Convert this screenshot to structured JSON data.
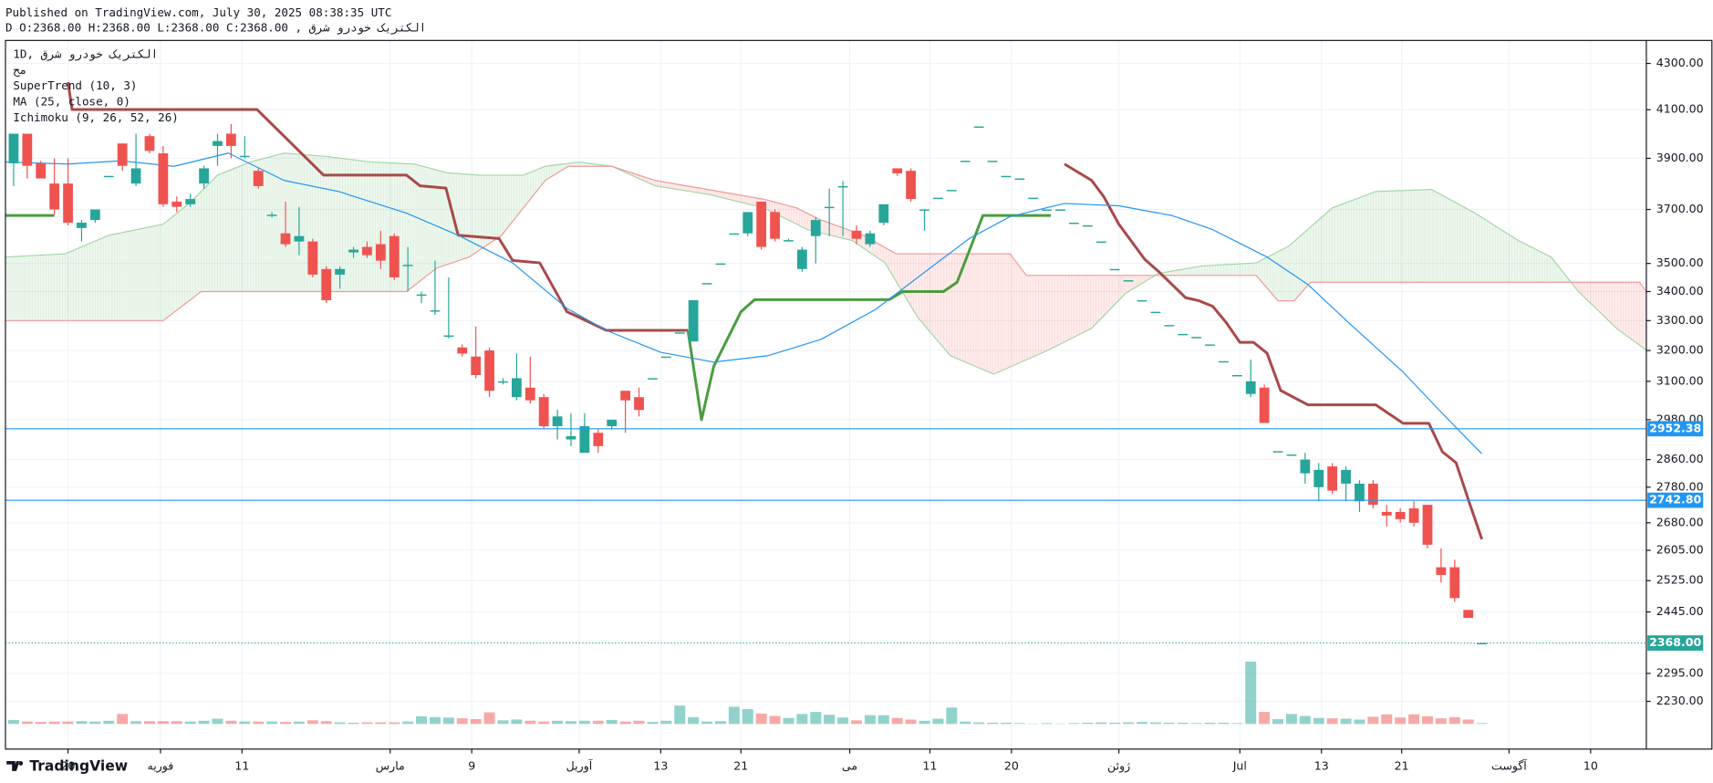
{
  "header": {
    "published": "Published on TradingView.com, July 30, 2025 08:38:35 UTC",
    "symbol_line": "الکتریک خودرو شرق , D O:2368.00 H:2368.00 L:2368.00 C:2368.00"
  },
  "footer": {
    "brand": "TradingView"
  },
  "chart_data": {
    "type": "candlestick",
    "legend": [
      "1D, الکتریک خودرو شرق",
      "مح",
      "SuperTrend (10, 3)",
      "MA (25, close, 0)",
      "Ichimoku (9, 26, 52, 26)"
    ],
    "log": true,
    "grid": true,
    "colors": {
      "up": "#26a69a",
      "down": "#ef5350",
      "volume_up": "rgba(38,166,154,0.5)",
      "volume_down": "rgba(239,83,80,0.5)"
    },
    "xlim": [
      -0.6,
      120.1
    ],
    "xticks": [
      {
        "value": 4,
        "label": "20"
      },
      {
        "value": 10.8,
        "label": "فوریه"
      },
      {
        "value": 16.8,
        "label": "11"
      },
      {
        "value": 27.7,
        "label": "مارس"
      },
      {
        "value": 33.7,
        "label": "9"
      },
      {
        "value": 41.6,
        "label": "آوریل"
      },
      {
        "value": 47.6,
        "label": "13"
      },
      {
        "value": 53.5,
        "label": "21"
      },
      {
        "value": 61.5,
        "label": "می"
      },
      {
        "value": 67.4,
        "label": "11"
      },
      {
        "value": 73.4,
        "label": "20"
      },
      {
        "value": 81.3,
        "label": "ژوئن"
      },
      {
        "value": 90.2,
        "label": "Jul"
      },
      {
        "value": 96.2,
        "label": "13"
      },
      {
        "value": 102.1,
        "label": "21"
      },
      {
        "value": 110,
        "label": "آگوست"
      },
      {
        "value": 116,
        "label": "10"
      }
    ],
    "ylim": [
      2123,
      4403
    ],
    "yticks": [
      {
        "value": 4300,
        "label": "4300.00"
      },
      {
        "value": 4100,
        "label": "4100.00"
      },
      {
        "value": 3900,
        "label": "3900.00"
      },
      {
        "value": 3700,
        "label": "3700.00"
      },
      {
        "value": 3500,
        "label": "3500.00"
      },
      {
        "value": 3400,
        "label": "3400.00"
      },
      {
        "value": 3300,
        "label": "3300.00"
      },
      {
        "value": 3200,
        "label": "3200.00"
      },
      {
        "value": 3100,
        "label": "3100.00"
      },
      {
        "value": 2980,
        "label": "2980.00"
      },
      {
        "value": 2860,
        "label": "2860.00"
      },
      {
        "value": 2780,
        "label": "2780.00"
      },
      {
        "value": 2680,
        "label": "2680.00"
      },
      {
        "value": 2605,
        "label": "2605.00"
      },
      {
        "value": 2525,
        "label": "2525.00"
      },
      {
        "value": 2445,
        "label": "2445.00"
      },
      {
        "value": 2295,
        "label": "2295.00"
      },
      {
        "value": 2230,
        "label": "2230.00"
      }
    ],
    "x": [
      0,
      1,
      2,
      3,
      4,
      5,
      6,
      7,
      8,
      9,
      10,
      11,
      12,
      13,
      14,
      15,
      16,
      17,
      18,
      19,
      20,
      21,
      22,
      23,
      24,
      25,
      26,
      27,
      28,
      29,
      30,
      31,
      32,
      33,
      34,
      35,
      36,
      37,
      38,
      39,
      40,
      41,
      42,
      43,
      44,
      45,
      46,
      47,
      48,
      49,
      50,
      51,
      52,
      53,
      54,
      55,
      56,
      57,
      58,
      59,
      60,
      61,
      62,
      63,
      64,
      65,
      66,
      67,
      68,
      69,
      70,
      71,
      72,
      73,
      74,
      75,
      76,
      77,
      78,
      79,
      80,
      81,
      82,
      83,
      84,
      85,
      86,
      87,
      88,
      89,
      90,
      91,
      92,
      93,
      94,
      95,
      96,
      97,
      98,
      99,
      100,
      101,
      102,
      103,
      104,
      105,
      106,
      107,
      108
    ],
    "open": [
      3880,
      4000,
      3880,
      3800,
      3800,
      3630,
      3660,
      3830,
      3960,
      3800,
      3990,
      3920,
      3730,
      3720,
      3800,
      3950,
      4000,
      3910,
      3850,
      3680,
      3610,
      3580,
      3580,
      3480,
      3460,
      3540,
      3560,
      3570,
      3600,
      3495,
      3390,
      3335,
      3250,
      3210,
      3180,
      3200,
      3100,
      3050,
      3080,
      3050,
      2960,
      2920,
      2880,
      2940,
      2960,
      3070,
      3050,
      3110,
      3180,
      3260,
      3230,
      3430,
      3500,
      3610,
      3610,
      3730,
      3690,
      3585,
      3480,
      3600,
      3710,
      3790,
      3620,
      3570,
      3650,
      3860,
      3850,
      3700,
      3745,
      3775,
      3890,
      4030,
      3890,
      3830,
      3820,
      3745,
      3700,
      3700,
      3650,
      3640,
      3580,
      3480,
      3440,
      3370,
      3330,
      3285,
      3255,
      3245,
      3220,
      3165,
      3120,
      3060,
      3080,
      2885,
      2875,
      2820,
      2780,
      2840,
      2790,
      2740,
      2790,
      2710,
      2710,
      2720,
      2730,
      2560,
      2560,
      2450,
      2368
    ],
    "high": [
      4000,
      4000,
      3890,
      3900,
      3900,
      3660,
      3700,
      3830,
      3960,
      4000,
      4000,
      3950,
      3750,
      3760,
      3870,
      4000,
      4040,
      3990,
      3860,
      3690,
      3730,
      3710,
      3590,
      3490,
      3490,
      3560,
      3580,
      3620,
      3610,
      3560,
      3400,
      3510,
      3450,
      3220,
      3280,
      3210,
      3110,
      3190,
      3180,
      3060,
      3010,
      3000,
      3000,
      2950,
      2980,
      3070,
      3080,
      3110,
      3180,
      3260,
      3370,
      3430,
      3500,
      3610,
      3690,
      3730,
      3700,
      3590,
      3560,
      3670,
      3780,
      3810,
      3640,
      3620,
      3720,
      3860,
      3860,
      3700,
      3745,
      3775,
      3890,
      4030,
      3890,
      3830,
      3820,
      3745,
      3700,
      3700,
      3650,
      3640,
      3580,
      3480,
      3440,
      3370,
      3330,
      3285,
      3255,
      3245,
      3220,
      3165,
      3120,
      3170,
      3090,
      2885,
      2875,
      2880,
      2850,
      2850,
      2840,
      2800,
      2800,
      2730,
      2720,
      2740,
      2730,
      2610,
      2580,
      2450,
      2368
    ],
    "low": [
      3790,
      3820,
      3820,
      3680,
      3640,
      3580,
      3650,
      3830,
      3850,
      3790,
      3920,
      3710,
      3690,
      3710,
      3780,
      3870,
      3900,
      3900,
      3780,
      3670,
      3560,
      3530,
      3450,
      3360,
      3410,
      3520,
      3520,
      3480,
      3440,
      3400,
      3360,
      3320,
      3240,
      3180,
      3110,
      3050,
      3090,
      3040,
      3030,
      2950,
      2920,
      2900,
      2880,
      2880,
      2950,
      2940,
      2990,
      3110,
      3180,
      3260,
      3230,
      3430,
      3500,
      3610,
      3600,
      3550,
      3580,
      3580,
      3470,
      3500,
      3600,
      3600,
      3570,
      3560,
      3640,
      3830,
      3730,
      3620,
      3745,
      3775,
      3890,
      4030,
      3890,
      3830,
      3820,
      3745,
      3700,
      3700,
      3650,
      3640,
      3580,
      3480,
      3440,
      3370,
      3330,
      3285,
      3255,
      3245,
      3220,
      3165,
      3120,
      3050,
      2970,
      2885,
      2875,
      2790,
      2740,
      2760,
      2740,
      2710,
      2720,
      2670,
      2680,
      2670,
      2610,
      2520,
      2470,
      2430,
      2368
    ],
    "close": [
      4000,
      3870,
      3820,
      3700,
      3650,
      3650,
      3700,
      3830,
      3870,
      3860,
      3930,
      3720,
      3710,
      3740,
      3860,
      3970,
      3950,
      3910,
      3790,
      3680,
      3570,
      3600,
      3460,
      3370,
      3480,
      3550,
      3530,
      3510,
      3450,
      3495,
      3390,
      3335,
      3250,
      3190,
      3120,
      3070,
      3100,
      3110,
      3040,
      2960,
      2990,
      2930,
      2960,
      2900,
      2980,
      3040,
      3010,
      3110,
      3180,
      3260,
      3370,
      3430,
      3500,
      3610,
      3690,
      3560,
      3590,
      3585,
      3550,
      3660,
      3710,
      3790,
      3590,
      3610,
      3720,
      3840,
      3740,
      3700,
      3745,
      3775,
      3890,
      4030,
      3890,
      3830,
      3820,
      3745,
      3700,
      3700,
      3650,
      3640,
      3580,
      3480,
      3440,
      3370,
      3330,
      3285,
      3255,
      3245,
      3220,
      3165,
      3120,
      3100,
      2970,
      2885,
      2875,
      2860,
      2830,
      2770,
      2830,
      2790,
      2730,
      2700,
      2690,
      2680,
      2620,
      2540,
      2480,
      2430,
      2368
    ],
    "volume": [
      10,
      6,
      5,
      6,
      6,
      7,
      6,
      8,
      25,
      7,
      7,
      7,
      7,
      6,
      8,
      13,
      8,
      6,
      6,
      6,
      5,
      6,
      9,
      7,
      4,
      3,
      4,
      4,
      4,
      6,
      19,
      17,
      16,
      14,
      12,
      29,
      9,
      11,
      8,
      6,
      8,
      7,
      8,
      8,
      10,
      6,
      8,
      5,
      8,
      46,
      17,
      6,
      7,
      43,
      37,
      26,
      20,
      15,
      25,
      30,
      23,
      16,
      9,
      22,
      22,
      15,
      11,
      8,
      13,
      41,
      6,
      4,
      3,
      3,
      2,
      1,
      2,
      1,
      2,
      3,
      4,
      3,
      4,
      5,
      4,
      3,
      3,
      2,
      3,
      3,
      2,
      156,
      30,
      12,
      25,
      20,
      15,
      14,
      13,
      11,
      18,
      24,
      16,
      24,
      19,
      14,
      17,
      11,
      2
    ],
    "lines": [
      {
        "color": "#a84a48",
        "width": 2.5,
        "x": [
          4.0,
          4.3,
          17.9,
          22.8,
          28.9,
          29.9,
          31.8,
          32.7,
          35.7,
          36.7,
          38.7,
          40.7,
          41.6,
          43.6,
          49.6,
          60,
          77.3,
          79.3,
          80.2,
          81.3,
          83.2,
          84.2,
          86.2,
          87.2,
          88.2,
          89.2,
          90.2,
          91.2,
          92.2,
          93.2,
          95.2,
          100.2,
          102.2,
          104.1,
          105.1,
          106.1,
          107.1,
          108
        ],
        "values": [
          4218,
          4101,
          4101,
          3833,
          3833,
          3791,
          3782,
          3603,
          3591,
          3511,
          3502,
          3330,
          3311,
          3267,
          3267,
          null,
          3877,
          3812,
          3748,
          3644,
          3515,
          3472,
          3379,
          3368,
          3349,
          3293,
          3227,
          3227,
          3191,
          3071,
          3026,
          3026,
          2969,
          2969,
          2883,
          2851,
          2734,
          2635
        ]
      },
      {
        "color": "#4a9d3f",
        "width": 2.5,
        "x": [
          -0.6,
          3.0,
          20,
          49.6,
          50.6,
          51.5,
          53.5,
          54.5,
          64.4,
          65.4,
          68.4,
          69.4,
          71.3,
          76.3
        ],
        "values": [
          3677,
          3677,
          null,
          3267,
          2980,
          3148,
          3330,
          3372,
          3372,
          3400,
          3400,
          3433,
          3677,
          3677
        ]
      },
      {
        "color": "#2196f3",
        "width": 1,
        "x": [
          -0.6,
          4,
          7.9,
          11.8,
          15.8,
          19.9,
          23.9,
          28.9,
          32.7,
          36.7,
          40.7,
          43.6,
          47.6,
          51.5,
          55.5,
          59.4,
          63.4,
          67.4,
          70.3,
          73.3,
          77.3,
          81.3,
          85.2,
          88.2,
          92.2,
          95.2,
          98.2,
          102.2,
          105.1,
          108
        ],
        "values": [
          3885,
          3877,
          3890,
          3868,
          3921,
          3812,
          3769,
          3686,
          3603,
          3502,
          3342,
          3267,
          3194,
          3162,
          3183,
          3237,
          3338,
          3483,
          3591,
          3673,
          3723,
          3714,
          3677,
          3624,
          3523,
          3425,
          3293,
          3130,
          2999,
          2877
        ]
      }
    ],
    "ichimoku": {
      "up_color": "rgba(76,175,80,0.10)",
      "down_color": "rgba(244,67,54,0.10)",
      "span_a": {
        "color": "#a5d6a7",
        "x": [
          -0.6,
          3.8,
          7.0,
          11.0,
          13.0,
          15.0,
          17.4,
          19.9,
          23.1,
          26.3,
          29.5,
          31.9,
          34.3,
          37.5,
          39.1,
          41.6,
          44.0,
          47.2,
          51.2,
          55.2,
          58.4,
          61.7,
          64.1,
          66.5,
          68.9,
          72.1,
          76.1,
          79.3,
          81.8,
          84.2,
          87.4,
          91.4,
          93.8,
          97.0,
          100.2,
          104.3,
          107.5,
          110.7,
          113.1,
          115.1,
          117.9,
          120.1
        ],
        "values": [
          3523,
          3535,
          3603,
          3644,
          3727,
          3833,
          3885,
          3921,
          3907,
          3885,
          3877,
          3842,
          3833,
          3833,
          3868,
          3885,
          3868,
          3791,
          3757,
          3706,
          3624,
          3583,
          3502,
          3311,
          3183,
          3123,
          3201,
          3274,
          3394,
          3464,
          3491,
          3502,
          3563,
          3706,
          3769,
          3777,
          3686,
          3583,
          3523,
          3400,
          3274,
          3201
        ]
      },
      "span_b": {
        "color": "#ef9a9a",
        "x": [
          -0.6,
          11.0,
          13.8,
          28.9,
          31.1,
          33.5,
          35.9,
          37.5,
          39.1,
          40.8,
          44.0,
          47.2,
          55.2,
          57.6,
          59.2,
          62.5,
          64.9,
          73.3,
          74.5,
          88.2,
          91.4,
          93.0,
          94.2,
          95.4,
          119.6,
          120.1
        ],
        "values": [
          3300,
          3300,
          3400,
          3400,
          3483,
          3523,
          3603,
          3706,
          3812,
          3868,
          3868,
          3812,
          3739,
          3706,
          3664,
          3603,
          3535,
          3535,
          3457,
          3457,
          3457,
          3368,
          3368,
          3433,
          3433,
          3400
        ]
      }
    },
    "price_lines": [
      {
        "value": 2952.38,
        "color": "#2196f3",
        "dash": false
      },
      {
        "value": 2742.8,
        "label": "2742.80",
        "color": "#2196f3",
        "dash": false
      },
      {
        "value": 2368,
        "label": "2368.00",
        "color": "#26a69a",
        "dash": true
      }
    ]
  }
}
